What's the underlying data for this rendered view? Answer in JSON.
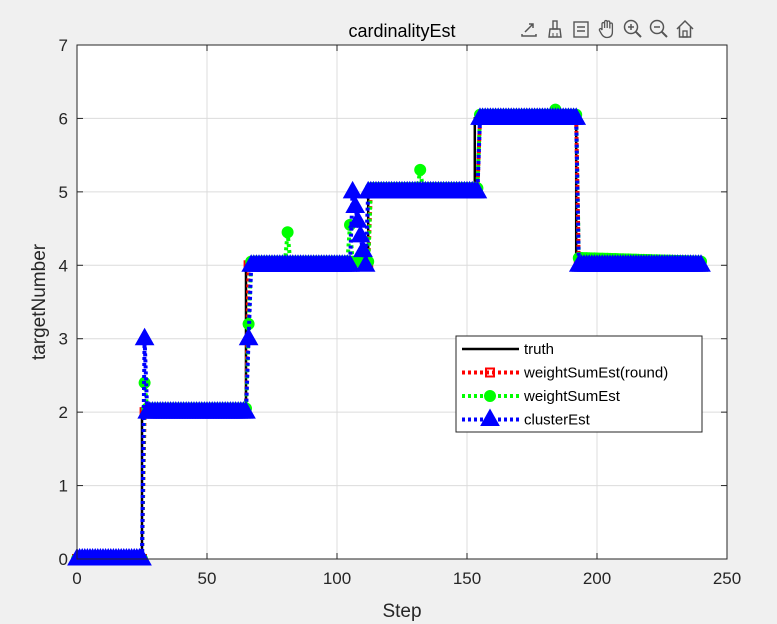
{
  "toolbar": {
    "buttons": [
      {
        "icon": "export-icon"
      },
      {
        "icon": "brush-icon"
      },
      {
        "icon": "datatip-icon"
      },
      {
        "icon": "pan-hand-icon"
      },
      {
        "icon": "zoom-in-icon"
      },
      {
        "icon": "zoom-out-icon"
      },
      {
        "icon": "home-icon"
      }
    ]
  },
  "chart_data": {
    "type": "line",
    "title": "cardinalityEst",
    "xlabel": "Step",
    "ylabel": "targetNumber",
    "xlim": [
      0,
      250
    ],
    "ylim": [
      0,
      7
    ],
    "xticks": [
      0,
      50,
      100,
      150,
      200,
      250
    ],
    "yticks": [
      0,
      1,
      2,
      3,
      4,
      5,
      6,
      7
    ],
    "grid": true,
    "legend_location": "east",
    "series": [
      {
        "name": "truth",
        "color": "#000000",
        "style": "solid",
        "marker": "none",
        "x": [
          0,
          25,
          25,
          65,
          65,
          105,
          105,
          112,
          112,
          153,
          153,
          192,
          192,
          240
        ],
        "y": [
          0,
          0,
          2,
          2,
          4,
          4,
          4,
          4,
          5,
          5,
          6,
          6,
          4,
          4
        ]
      },
      {
        "name": "weightSumEst(round)",
        "color": "#ff0000",
        "style": "dotted",
        "marker": "square",
        "x": [
          0,
          25,
          26,
          65,
          66,
          105,
          106,
          112,
          113,
          154,
          155,
          192,
          193,
          240
        ],
        "y": [
          0,
          0,
          2,
          2,
          4,
          4,
          4,
          4,
          5,
          5,
          6,
          6,
          4,
          4
        ]
      },
      {
        "name": "weightSumEst",
        "color": "#00ff00",
        "style": "dotted",
        "marker": "circle",
        "x": [
          0,
          25,
          26,
          27,
          65,
          66,
          67,
          80,
          81,
          82,
          104,
          105,
          106,
          112,
          113,
          131,
          132,
          133,
          154,
          155,
          183,
          184,
          185,
          192,
          193,
          240
        ],
        "y": [
          0,
          0,
          2.4,
          2.05,
          2.05,
          3.2,
          4.05,
          4.05,
          4.45,
          4.05,
          4.05,
          4.55,
          4.05,
          4.05,
          5.05,
          5.05,
          5.3,
          5.05,
          5.05,
          6.05,
          6.05,
          6.12,
          6.05,
          6.05,
          4.1,
          4.05
        ]
      },
      {
        "name": "clusterEst",
        "color": "#0000ff",
        "style": "dotted",
        "marker": "triangle",
        "x": [
          0,
          25,
          26,
          27,
          65,
          66,
          67,
          105,
          106,
          111,
          112,
          154,
          155,
          192,
          193,
          240
        ],
        "y": [
          0,
          0,
          3,
          2,
          2,
          3,
          4,
          4,
          5,
          4,
          5,
          5,
          6,
          6,
          4,
          4
        ]
      }
    ]
  }
}
